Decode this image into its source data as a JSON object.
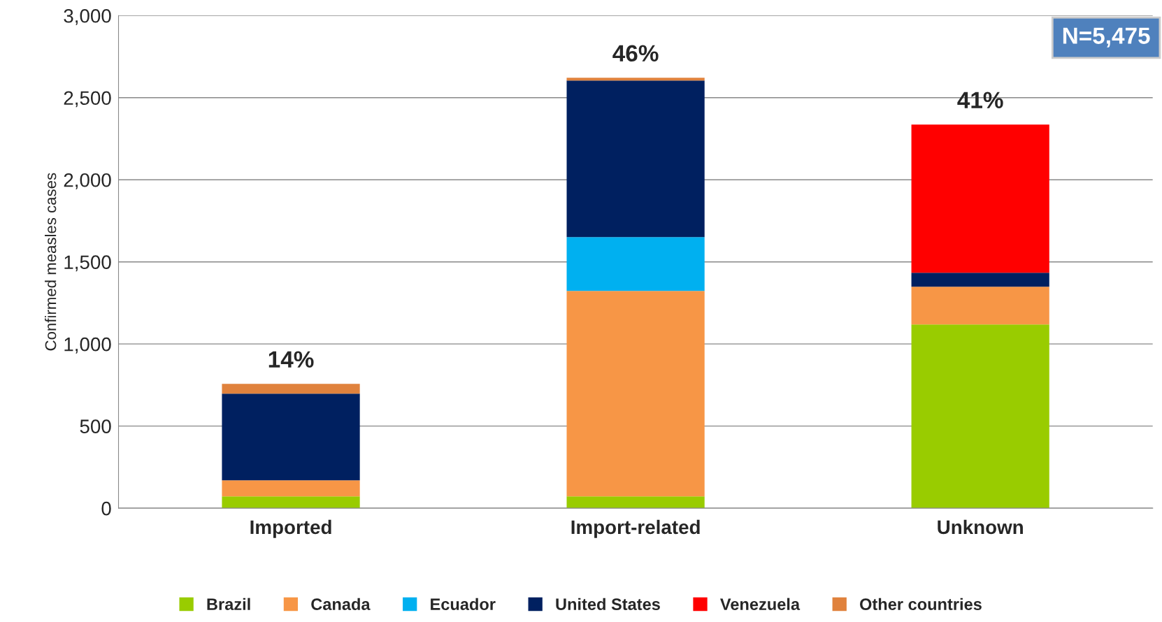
{
  "chart_data": {
    "type": "bar",
    "stacked": true,
    "ylabel": "Confirmed measles cases",
    "categories": [
      "Imported",
      "Import-related",
      "Unknown"
    ],
    "series": [
      {
        "name": "Brazil",
        "color": "#99cc00",
        "values": [
          72,
          72,
          1119
        ]
      },
      {
        "name": "Canada",
        "color": "#f79646",
        "values": [
          98,
          1251,
          230
        ]
      },
      {
        "name": "Ecuador",
        "color": "#00b0f0",
        "values": [
          0,
          328,
          0
        ]
      },
      {
        "name": "United States",
        "color": "#002060",
        "values": [
          528,
          953,
          85
        ]
      },
      {
        "name": "Venezuela",
        "color": "#ff0000",
        "values": [
          0,
          0,
          902
        ]
      },
      {
        "name": "Other countries",
        "color": "#e0823d",
        "values": [
          59,
          17,
          0
        ]
      }
    ],
    "annotations": [
      {
        "text": "14%",
        "x": "Imported",
        "y": 757
      },
      {
        "text": "46%",
        "x": "Import-related",
        "y": 2621
      },
      {
        "text": "41%",
        "x": "Unknown",
        "y": 2336
      },
      "N=5,475"
    ],
    "ylim": [
      0,
      3000
    ],
    "yticks": [
      {
        "value": 0,
        "label": "0"
      },
      {
        "value": 500,
        "label": "500"
      },
      {
        "value": 1000,
        "label": "1,000"
      },
      {
        "value": 1500,
        "label": "1,500"
      },
      {
        "value": 2000,
        "label": "2,000"
      },
      {
        "value": 2500,
        "label": "2,500"
      },
      {
        "value": 3000,
        "label": "3,000"
      }
    ],
    "grid": "y",
    "legend": "bottom"
  }
}
